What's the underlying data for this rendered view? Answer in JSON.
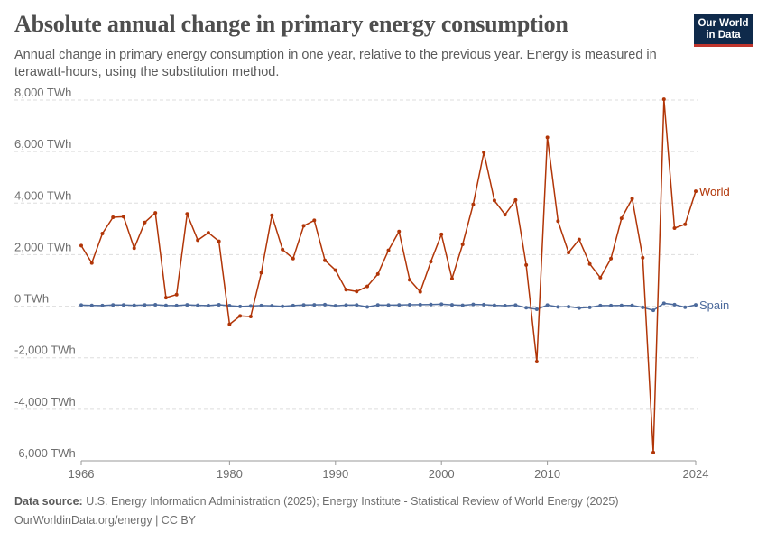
{
  "header": {
    "title": "Absolute annual change in primary energy consumption",
    "subtitle": "Annual change in primary energy consumption in one year, relative to the previous year. Energy is measured in terawatt-hours, using the substitution method.",
    "logo_line1": "Our World",
    "logo_line2": "in Data"
  },
  "footer": {
    "source_label": "Data source:",
    "source_text": "U.S. Energy Information Administration (2025); Energy Institute - Statistical Review of World Energy (2025)",
    "url_text": "OurWorldinData.org/energy | CC BY"
  },
  "chart_data": {
    "type": "line",
    "title": "Absolute annual change in primary energy consumption",
    "xlabel": "",
    "ylabel": "",
    "xlim": [
      1966,
      2024
    ],
    "ylim": [
      -6000,
      8000
    ],
    "y_ticks": [
      -6000,
      -4000,
      -2000,
      0,
      2000,
      4000,
      6000,
      8000
    ],
    "y_tick_labels": [
      "-6,000 TWh",
      "-4,000 TWh",
      "-2,000 TWh",
      "0 TWh",
      "2,000 TWh",
      "4,000 TWh",
      "6,000 TWh",
      "8,000 TWh"
    ],
    "x_ticks": [
      1966,
      1980,
      1990,
      2000,
      2010,
      2024
    ],
    "x_tick_labels": [
      "1966",
      "1980",
      "1990",
      "2000",
      "2010",
      "2024"
    ],
    "grid": "horizontal dashed",
    "legend": "line-end labels",
    "series": [
      {
        "name": "World",
        "color": "#b13507",
        "x": [
          1966,
          1967,
          1968,
          1969,
          1970,
          1971,
          1972,
          1973,
          1974,
          1975,
          1976,
          1977,
          1978,
          1979,
          1980,
          1981,
          1982,
          1983,
          1984,
          1985,
          1986,
          1987,
          1988,
          1989,
          1990,
          1991,
          1992,
          1993,
          1994,
          1995,
          1996,
          1997,
          1998,
          1999,
          2000,
          2001,
          2002,
          2003,
          2004,
          2005,
          2006,
          2007,
          2008,
          2009,
          2010,
          2011,
          2012,
          2013,
          2014,
          2015,
          2016,
          2017,
          2018,
          2019,
          2020,
          2021,
          2022,
          2023,
          2024
        ],
        "values": [
          2350,
          1680,
          2820,
          3450,
          3470,
          2250,
          3250,
          3620,
          330,
          450,
          3580,
          2560,
          2850,
          2520,
          -700,
          -380,
          -400,
          1300,
          3530,
          2200,
          1850,
          3120,
          3330,
          1780,
          1400,
          640,
          570,
          770,
          1250,
          2170,
          2900,
          1020,
          560,
          1730,
          2790,
          1070,
          2400,
          3950,
          5970,
          4100,
          3550,
          4120,
          1600,
          -2150,
          6550,
          3300,
          2080,
          2590,
          1640,
          1110,
          1850,
          3410,
          4170,
          1880,
          -5680,
          8030,
          3030,
          3180,
          4460
        ]
      },
      {
        "name": "Spain",
        "color": "#4c6a9c",
        "x": [
          1966,
          1967,
          1968,
          1969,
          1970,
          1971,
          1972,
          1973,
          1974,
          1975,
          1976,
          1977,
          1978,
          1979,
          1980,
          1981,
          1982,
          1983,
          1984,
          1985,
          1986,
          1987,
          1988,
          1989,
          1990,
          1991,
          1992,
          1993,
          1994,
          1995,
          1996,
          1997,
          1998,
          1999,
          2000,
          2001,
          2002,
          2003,
          2004,
          2005,
          2006,
          2007,
          2008,
          2009,
          2010,
          2011,
          2012,
          2013,
          2014,
          2015,
          2016,
          2017,
          2018,
          2019,
          2020,
          2021,
          2022,
          2023,
          2024
        ],
        "values": [
          40,
          30,
          25,
          45,
          45,
          35,
          45,
          55,
          30,
          25,
          50,
          35,
          25,
          55,
          20,
          -10,
          5,
          25,
          15,
          -5,
          25,
          45,
          50,
          60,
          15,
          40,
          45,
          -30,
          45,
          40,
          45,
          55,
          60,
          65,
          75,
          50,
          35,
          70,
          60,
          35,
          20,
          40,
          -60,
          -120,
          40,
          -30,
          -20,
          -70,
          -45,
          25,
          25,
          30,
          30,
          -45,
          -160,
          110,
          60,
          -40,
          50
        ]
      }
    ]
  }
}
